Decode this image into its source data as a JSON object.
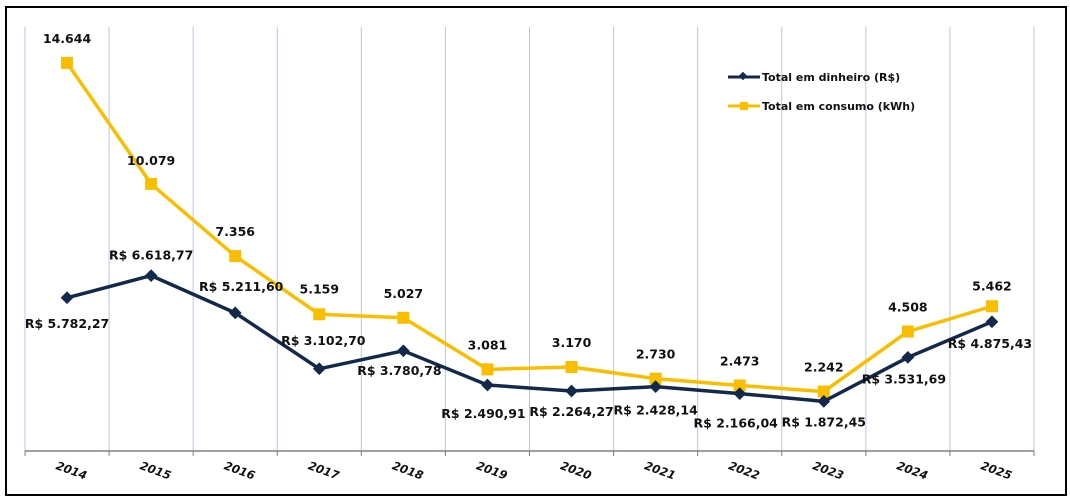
{
  "chart_data": {
    "type": "line",
    "title": "",
    "xlabel": "",
    "ylabel": "",
    "ylim": [
      0,
      16000
    ],
    "grid": "vertical",
    "legend_position": "top-right",
    "categories": [
      "2014",
      "2015",
      "2016",
      "2017",
      "2018",
      "2019",
      "2020",
      "2021",
      "2022",
      "2023",
      "2024",
      "2025"
    ],
    "series": [
      {
        "name": "Total em dinheiro (R$)",
        "color": "#13294b",
        "marker": "diamond",
        "values": [
          5782.27,
          6618.77,
          5211.6,
          3102.7,
          3780.78,
          2490.91,
          2264.27,
          2428.14,
          2166.04,
          1872.45,
          3531.69,
          4875.43
        ],
        "labels": [
          "R$ 5.782,27",
          "R$ 6.618,77",
          "R$ 5.211,60",
          "R$ 3.102,70",
          "R$ 3.780,78",
          "R$ 2.490,91",
          "R$ 2.264,27",
          "R$ 2.428,14",
          "R$ 2.166,04",
          "R$ 1.872,45",
          "R$ 3.531,69",
          "R$ 4.875,43"
        ]
      },
      {
        "name": "Total em consumo (kWh)",
        "color": "#f9be00",
        "marker": "square",
        "values": [
          14644,
          10079,
          7356,
          5159,
          5027,
          3081,
          3170,
          2730,
          2473,
          2242,
          4508,
          5462
        ],
        "labels": [
          "14.644",
          "10.079",
          "7.356",
          "5.159",
          "5.027",
          "3.081",
          "3.170",
          "2.730",
          "2.473",
          "2.242",
          "4.508",
          "5.462"
        ]
      }
    ]
  }
}
